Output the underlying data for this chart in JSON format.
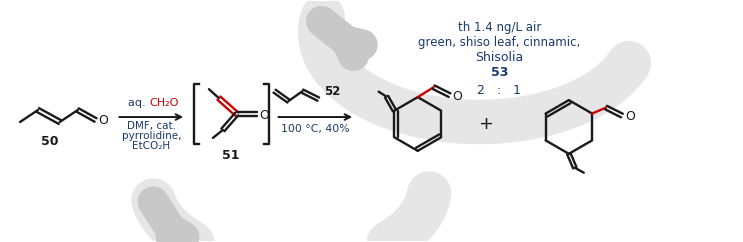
{
  "fig_width": 7.43,
  "fig_height": 2.42,
  "dpi": 100,
  "bg_color": "#ffffff",
  "bond_color": "#1a1a1a",
  "red_color": "#cc0000",
  "blue_text": "#1a3a6e",
  "label_50": "50",
  "label_51": "51",
  "label_52": "52",
  "label_53": "53",
  "arrow1_top1": "aq. ",
  "arrow1_top2": "CH₂O",
  "arrow1_mid": "DMF, cat.",
  "arrow1_bot1": "pyrrolidine,",
  "arrow1_bot2": "EtCO₂H",
  "arrow2_bot": "100 °C, 40%",
  "ratio_text": "2   :   1",
  "compound_name": "53",
  "common_name": "Shisolia",
  "description1": "green, shiso leaf, cinnamic,",
  "description2": "th 1.4 ng/L air",
  "watermark_color": "#c8c8c8"
}
